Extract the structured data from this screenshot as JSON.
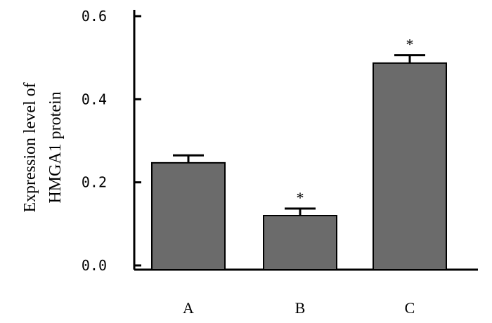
{
  "chart_data": {
    "type": "bar",
    "categories": [
      "A",
      "B",
      "C"
    ],
    "values": [
      0.247,
      0.12,
      0.487
    ],
    "errors": [
      0.018,
      0.017,
      0.019
    ],
    "significance": [
      "",
      "*",
      "*"
    ],
    "ylabel_lines": [
      "Expression level of",
      "HMGA1 protein"
    ],
    "yticks": [
      "0.0",
      "0.2",
      "0.4",
      "0.6"
    ],
    "ylim": [
      0,
      0.6
    ],
    "grid": false,
    "legend": "none",
    "bar_color": "#6b6b6b",
    "error_color": "#000000"
  }
}
